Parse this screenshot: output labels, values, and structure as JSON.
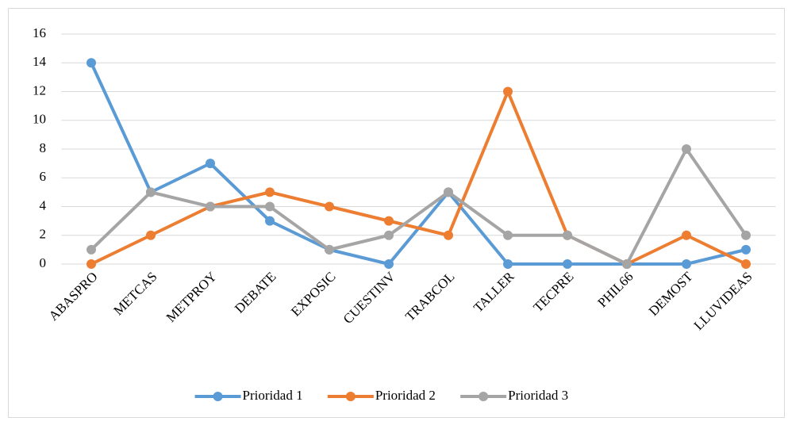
{
  "chart_data": {
    "type": "line",
    "categories": [
      "ABASPRO",
      "METCAS",
      "METPROY",
      "DEBATE",
      "EXPOSIC",
      "CUESTINV",
      "TRABCOL",
      "TALLER",
      "TECPRE",
      "PHIL66",
      "DEMOST",
      "LLUVIDEAS"
    ],
    "series": [
      {
        "name": "Prioridad 1",
        "color": "#5b9bd5",
        "values": [
          14,
          5,
          7,
          3,
          1,
          0,
          5,
          0,
          0,
          0,
          0,
          1
        ]
      },
      {
        "name": "Prioridad 2",
        "color": "#ed7d31",
        "values": [
          0,
          2,
          4,
          5,
          4,
          3,
          2,
          12,
          2,
          0,
          2,
          0
        ]
      },
      {
        "name": "Prioridad 3",
        "color": "#a5a5a5",
        "values": [
          1,
          5,
          4,
          4,
          1,
          2,
          5,
          2,
          2,
          0,
          8,
          2
        ]
      }
    ],
    "ylim": [
      0,
      16
    ],
    "yticks": [
      0,
      2,
      4,
      6,
      8,
      10,
      12,
      14,
      16
    ],
    "grid": true,
    "legend": "bottom"
  }
}
